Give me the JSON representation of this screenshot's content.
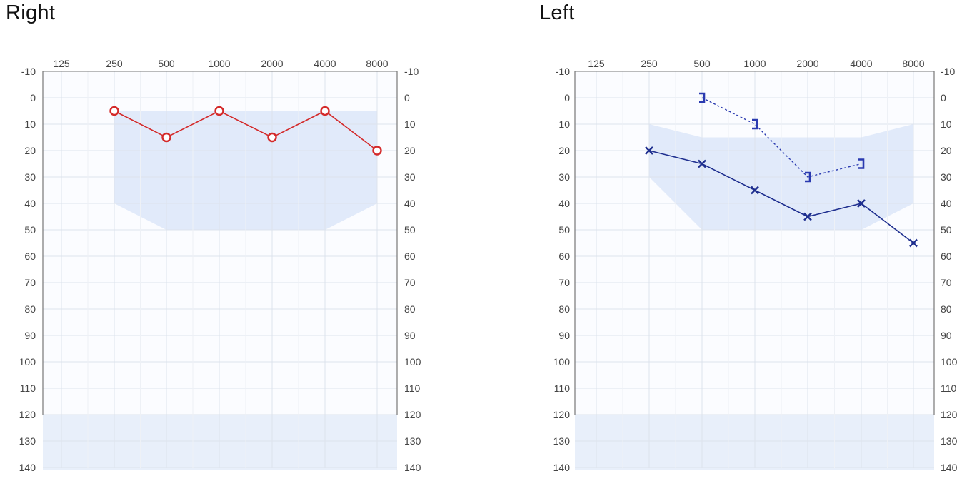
{
  "chart_data": [
    {
      "type": "line",
      "title": "Right",
      "x_categories": [
        "125",
        "250",
        "500",
        "1000",
        "2000",
        "4000",
        "8000"
      ],
      "y_ticks": [
        -10,
        0,
        10,
        20,
        30,
        40,
        50,
        60,
        70,
        80,
        90,
        100,
        110,
        120,
        130,
        140
      ],
      "ylim": [
        -10,
        140
      ],
      "y_inverted": true,
      "grid": true,
      "background_band": {
        "from_db": 120,
        "to_db": 140,
        "color": "#e8effa"
      },
      "normal_range_region": [
        {
          "freq": "250",
          "low": 5,
          "high": 40
        },
        {
          "freq": "500",
          "low": 5,
          "high": 50
        },
        {
          "freq": "1000",
          "low": 5,
          "high": 50
        },
        {
          "freq": "2000",
          "low": 5,
          "high": 50
        },
        {
          "freq": "4000",
          "low": 5,
          "high": 50
        },
        {
          "freq": "8000",
          "low": 5,
          "high": 40
        }
      ],
      "series": [
        {
          "symbol": "O",
          "color": "#d42a2a",
          "line": "solid",
          "points": [
            {
              "x": "250",
              "y": 5
            },
            {
              "x": "500",
              "y": 15
            },
            {
              "x": "1000",
              "y": 5
            },
            {
              "x": "2000",
              "y": 15
            },
            {
              "x": "4000",
              "y": 5
            },
            {
              "x": "8000",
              "y": 20
            }
          ]
        }
      ]
    },
    {
      "type": "line",
      "title": "Left",
      "x_categories": [
        "125",
        "250",
        "500",
        "1000",
        "2000",
        "4000",
        "8000"
      ],
      "y_ticks": [
        -10,
        0,
        10,
        20,
        30,
        40,
        50,
        60,
        70,
        80,
        90,
        100,
        110,
        120,
        130,
        140
      ],
      "ylim": [
        -10,
        140
      ],
      "y_inverted": true,
      "grid": true,
      "background_band": {
        "from_db": 120,
        "to_db": 140,
        "color": "#e8effa"
      },
      "normal_range_region": [
        {
          "freq": "250",
          "low": 10,
          "high": 30
        },
        {
          "freq": "500",
          "low": 15,
          "high": 50
        },
        {
          "freq": "1000",
          "low": 15,
          "high": 50
        },
        {
          "freq": "2000",
          "low": 15,
          "high": 50
        },
        {
          "freq": "4000",
          "low": 15,
          "high": 50
        },
        {
          "freq": "8000",
          "low": 10,
          "high": 40
        }
      ],
      "series": [
        {
          "symbol": "X",
          "color": "#1f2f8f",
          "line": "solid",
          "points": [
            {
              "x": "250",
              "y": 20
            },
            {
              "x": "500",
              "y": 25
            },
            {
              "x": "1000",
              "y": 35
            },
            {
              "x": "2000",
              "y": 45
            },
            {
              "x": "4000",
              "y": 40
            },
            {
              "x": "8000",
              "y": 55
            }
          ]
        },
        {
          "symbol": "]",
          "color": "#2a3ab0",
          "line": "dashed",
          "points": [
            {
              "x": "500",
              "y": 0
            },
            {
              "x": "1000",
              "y": 10
            },
            {
              "x": "2000",
              "y": 30
            },
            {
              "x": "4000",
              "y": 25
            }
          ]
        }
      ]
    }
  ]
}
